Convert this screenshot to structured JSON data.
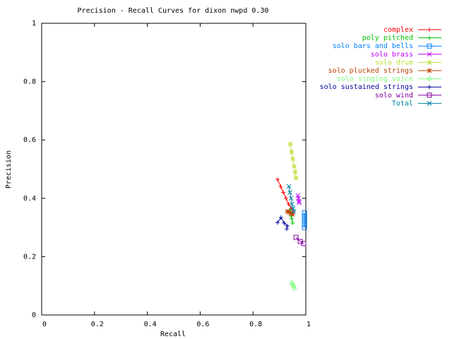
{
  "chart_data": {
    "type": "line",
    "title": "Precision - Recall Curves for dixon nwpd 0.30",
    "x_label": "Recall",
    "y_label": "Precision",
    "xlim": [
      0,
      1
    ],
    "ylim": [
      0,
      1
    ],
    "xticks": [
      0,
      0.2,
      0.4,
      0.6,
      0.8,
      1
    ],
    "yticks": [
      0,
      0.2,
      0.4,
      0.6,
      0.8,
      1
    ],
    "legend": "outside-top-right",
    "series": [
      {
        "name": "complex",
        "color": "#ff0000",
        "marker": "plus",
        "x": [
          0.893,
          0.905,
          0.915,
          0.925,
          0.935,
          0.945,
          0.952
        ],
        "values": [
          0.465,
          0.44,
          0.42,
          0.4,
          0.38,
          0.365,
          0.354
        ]
      },
      {
        "name": "poly pitched",
        "color": "#00c000",
        "marker": "plus",
        "x": [
          0.94,
          0.944,
          0.947,
          0.95
        ],
        "values": [
          0.36,
          0.34,
          0.33,
          0.315
        ]
      },
      {
        "name": "solo bars and bells",
        "color": "#0080ff",
        "marker": "square",
        "x": [
          0.995,
          0.995,
          0.995,
          0.995,
          0.995,
          0.995
        ],
        "values": [
          0.35,
          0.34,
          0.33,
          0.32,
          0.31,
          0.3
        ]
      },
      {
        "name": "solo brass",
        "color": "#c000ff",
        "marker": "x",
        "x": [
          0.97,
          0.972,
          0.974,
          0.975
        ],
        "values": [
          0.41,
          0.4,
          0.39,
          0.385
        ]
      },
      {
        "name": "solo drum",
        "color": "#c0e040",
        "marker": "star",
        "x": [
          0.941,
          0.946,
          0.951,
          0.956,
          0.96,
          0.963
        ],
        "values": [
          0.586,
          0.56,
          0.535,
          0.51,
          0.49,
          0.47
        ]
      },
      {
        "name": "solo plucked strings",
        "color": "#c04000",
        "marker": "star",
        "x": [
          0.93,
          0.937,
          0.944,
          0.95
        ],
        "values": [
          0.355,
          0.352,
          0.348,
          0.345
        ]
      },
      {
        "name": "solo singing voice",
        "color": "#80ff80",
        "marker": "diamond",
        "x": [
          0.947,
          0.95,
          0.954,
          0.957
        ],
        "values": [
          0.111,
          0.105,
          0.098,
          0.092
        ]
      },
      {
        "name": "solo sustained strings",
        "color": "#0000a0",
        "marker": "plus",
        "x": [
          0.893,
          0.906,
          0.918,
          0.93,
          0.928
        ],
        "values": [
          0.317,
          0.334,
          0.315,
          0.305,
          0.295
        ]
      },
      {
        "name": "solo wind",
        "color": "#8000a0",
        "marker": "square",
        "x": [
          0.963,
          0.979,
          0.992
        ],
        "values": [
          0.266,
          0.252,
          0.245
        ]
      },
      {
        "name": "Total",
        "color": "#0080a0",
        "marker": "x",
        "x": [
          0.936,
          0.94,
          0.944,
          0.948,
          0.952,
          0.955
        ],
        "values": [
          0.441,
          0.42,
          0.4,
          0.38,
          0.365,
          0.354
        ]
      }
    ]
  }
}
